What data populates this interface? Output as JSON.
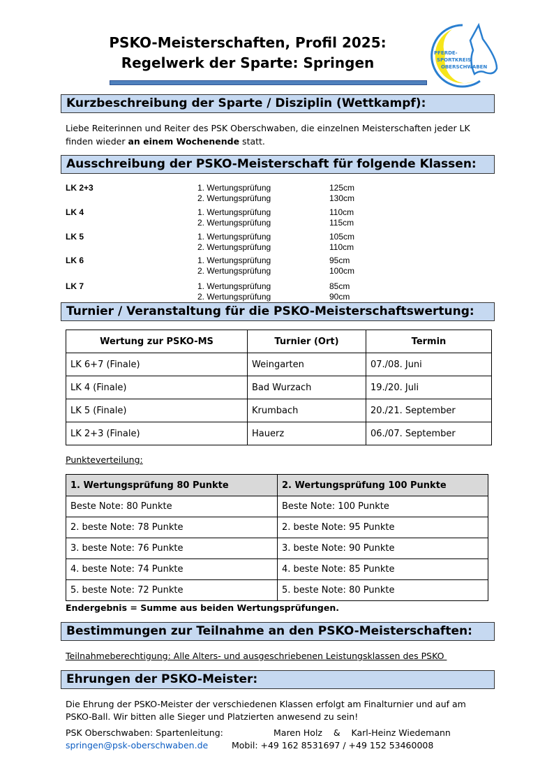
{
  "header": {
    "title_line1": "PSKO-Meisterschaften, Profil 2025:",
    "title_line2": "Regelwerk der Sparte: Springen",
    "logo_text": "PFERDE-SPORTKREIS OBERSCHWABEN",
    "accent": "#4f81bd",
    "bar_color": "#c6d9f1"
  },
  "s1": {
    "title": "Kurzbeschreibung der Sparte / Disziplin (Wettkampf):",
    "line1": "Liebe Reiterinnen und Reiter des PSK Oberschwaben, die einzelnen Meisterschaften jeder LK",
    "line2_pre": "finden wieder ",
    "line2_bold": "an einem Wochenende",
    "line2_post": " statt."
  },
  "s2": {
    "title": "Ausschreibung der PSKO-Meisterschaft für folgende Klassen:",
    "classes": [
      {
        "lk": "LK 2+3",
        "p1": "1. Wertungsprüfung",
        "h1": "125cm",
        "p2": "2. Wertungsprüfung",
        "h2": "130cm"
      },
      {
        "lk": "LK 4",
        "p1": "1. Wertungsprüfung",
        "h1": "110cm",
        "p2": "2. Wertungsprüfung",
        "h2": "115cm"
      },
      {
        "lk": "LK 5",
        "p1": "1. Wertungsprüfung",
        "h1": "105cm",
        "p2": "2. Wertungsprüfung",
        "h2": "110cm"
      },
      {
        "lk": "LK 6",
        "p1": "1. Wertungsprüfung",
        "h1": "95cm",
        "p2": "2. Wertungsprüfung",
        "h2": "100cm"
      },
      {
        "lk": "LK 7",
        "p1": "1. Wertungsprüfung",
        "h1": "85cm",
        "p2": "2. Wertungsprüfung",
        "h2": "90cm"
      }
    ]
  },
  "s3": {
    "title": "Turnier / Veranstaltung für die PSKO-Meisterschaftswertung:",
    "headers": [
      "Wertung zur PSKO-MS",
      "Turnier (Ort)",
      "Termin"
    ],
    "rows": [
      [
        "LK 6+7 (Finale)",
        "Weingarten",
        "07./08. Juni"
      ],
      [
        "LK 4 (Finale)",
        "Bad Wurzach",
        "19./20. Juli"
      ],
      [
        "LK 5 (Finale)",
        "Krumbach",
        "20./21. September"
      ],
      [
        "LK 2+3 (Finale)",
        "Hauerz",
        "06./07. September"
      ]
    ],
    "punkte_label": "Punkteverteilung:",
    "points_headers": [
      "1. Wertungsprüfung 80 Punkte",
      "2. Wertungsprüfung 100 Punkte"
    ],
    "points_rows": [
      [
        "Beste Note: 80 Punkte",
        "Beste Note: 100 Punkte"
      ],
      [
        "2. beste Note: 78 Punkte",
        "2. beste Note: 95 Punkte"
      ],
      [
        "3. beste Note: 76 Punkte",
        "3. beste Note: 90 Punkte"
      ],
      [
        "4. beste Note: 74 Punkte",
        "4. beste Note: 85 Punkte"
      ],
      [
        "5. beste Note: 72 Punkte",
        "5. beste Note: 80 Punkte"
      ]
    ],
    "endergebnis": "Endergebnis = Summe aus beiden Wertungsprüfungen."
  },
  "s4": {
    "title": "Bestimmungen zur Teilnahme an den PSKO-Meisterschaften:",
    "text": "Teilnahmeberechtigung: Alle Alters- und ausgeschriebenen Leistungsklassen des PSKO "
  },
  "s5": {
    "title": "Ehrungen der PSKO-Meister:",
    "line1": "Die Ehrung der PSKO-Meister der verschiedenen Klassen erfolgt am Finalturnier und auf am",
    "line2": "PSKO-Ball. Wir bitten alle Sieger und Platzierten anwesend zu sein!"
  },
  "footer": {
    "org": "PSK Oberschwaben: Spartenleitung:",
    "names": "Maren Holz    &    Karl-Heinz Wiedemann",
    "email": "springen@psk-oberschwaben.de",
    "phone": "Mobil: +49 162 8531697 / +49 152 53460008"
  }
}
